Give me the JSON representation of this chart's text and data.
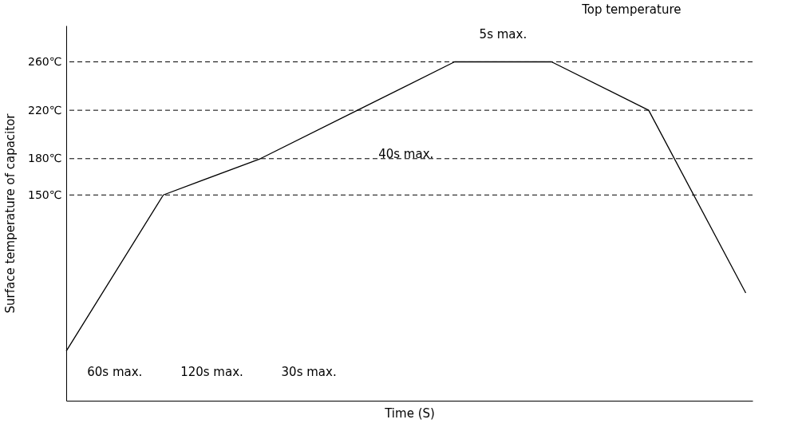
{
  "chart_data": {
    "type": "line",
    "title": "Top temperature",
    "xlabel": "Time (S)",
    "ylabel": "Surface temperature of capacitor",
    "categories": [
      null,
      null,
      null,
      null,
      null,
      null,
      null,
      null
    ],
    "series": [
      {
        "color": "#000000",
        "values": [
          21,
          150,
          180,
          220,
          260,
          260,
          220,
          69
        ]
      }
    ],
    "ylim": [
      -20,
      290
    ],
    "yticks": [
      {
        "value": 150,
        "label": "150℃"
      },
      {
        "value": 180,
        "label": "180℃"
      },
      {
        "value": 220,
        "label": "220℃"
      },
      {
        "value": 260,
        "label": "260℃"
      }
    ],
    "tick_labels": "y",
    "grid": false,
    "marker": "none",
    "line_style": "solid",
    "ref_lines": [
      {
        "axis": "y",
        "value": 150,
        "line_style": "dashed",
        "color": "#000000"
      },
      {
        "axis": "y",
        "value": 180,
        "line_style": "dashed",
        "color": "#000000"
      },
      {
        "axis": "y",
        "value": 220,
        "line_style": "dashed",
        "color": "#000000"
      },
      {
        "axis": "y",
        "value": 260,
        "line_style": "dashed",
        "color": "#000000"
      }
    ],
    "annotations": [
      "60s max.",
      "120s max.",
      "30s max.",
      "40s max.",
      "5s max."
    ]
  }
}
